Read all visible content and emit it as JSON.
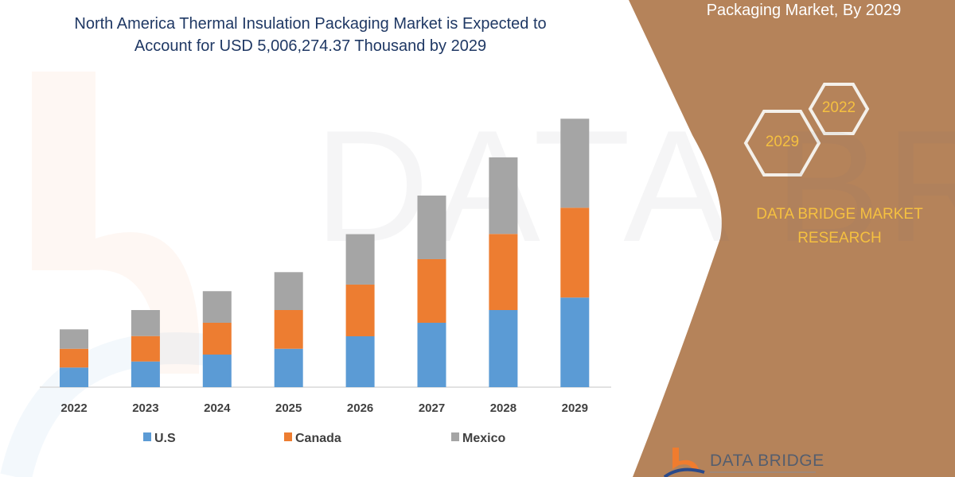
{
  "header": {
    "title_line1": "North America Thermal Insulation Packaging Market is Expected to",
    "title_line2": "Account for USD 5,006,274.37 Thousand by 2029"
  },
  "side_panel": {
    "title": "Packaging Market, By 2029",
    "hex_top": "2022",
    "hex_bottom": "2029",
    "brand_line1": "DATA BRIDGE MARKET",
    "brand_line2": "RESEARCH",
    "logo_text": "DATA BRIDGE",
    "watermark_text": "DATA BRIDGE",
    "panel_color": "#b5835a",
    "accent_text_color": "#f5c040"
  },
  "chart_data": {
    "type": "bar",
    "stacked": true,
    "unit": "USD Thousand",
    "categories": [
      "2022",
      "2023",
      "2024",
      "2025",
      "2026",
      "2027",
      "2028",
      "2029"
    ],
    "series": [
      {
        "name": "U.S",
        "color": "#5b9bd5",
        "values": [
          366000,
          479000,
          608000,
          716000,
          949000,
          1201000,
          1438000,
          1671000
        ]
      },
      {
        "name": "Canada",
        "color": "#ed7d31",
        "values": [
          350000,
          474000,
          593000,
          722000,
          964000,
          1186000,
          1419000,
          1675000
        ]
      },
      {
        "name": "Mexico",
        "color": "#a5a5a5",
        "values": [
          362000,
          485000,
          589000,
          707000,
          940000,
          1186000,
          1428000,
          1660000
        ]
      }
    ],
    "ylim": [
      0,
      5500000
    ],
    "y_axis_visible": false,
    "grid": false,
    "legend_position": "bottom"
  }
}
